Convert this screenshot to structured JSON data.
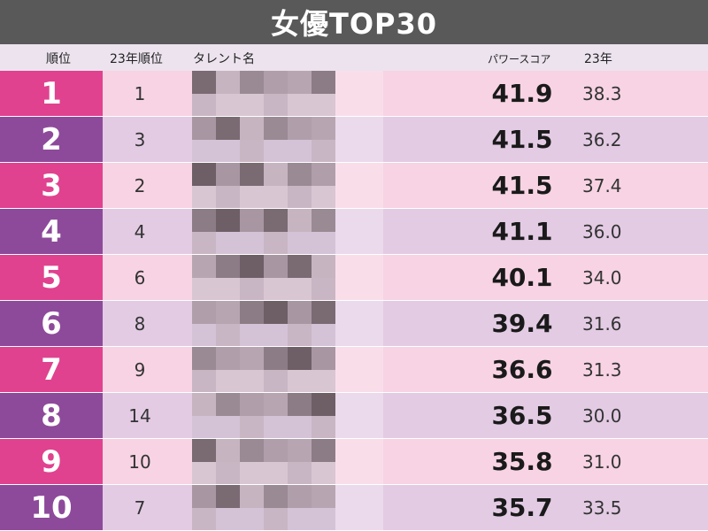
{
  "title": "女優TOP30",
  "headers": {
    "rank": "順位",
    "prev_rank": "23年順位",
    "talent": "タレント名",
    "power_score": "パワースコア",
    "year": "23年"
  },
  "colors": {
    "title_bg": "#595959",
    "header_bg": "#ece3ef",
    "rank_pink": "#e0428f",
    "rank_purple": "#8e4a9a",
    "row_pink": "#f7d3e3",
    "row_purple": "#e3cbe4"
  },
  "rows": [
    {
      "rank": "1",
      "prev_rank": "1",
      "score": "41.9",
      "year": "38.3"
    },
    {
      "rank": "2",
      "prev_rank": "3",
      "score": "41.5",
      "year": "36.2"
    },
    {
      "rank": "3",
      "prev_rank": "2",
      "score": "41.5",
      "year": "37.4"
    },
    {
      "rank": "4",
      "prev_rank": "4",
      "score": "41.1",
      "year": "36.0"
    },
    {
      "rank": "5",
      "prev_rank": "6",
      "score": "40.1",
      "year": "34.0"
    },
    {
      "rank": "6",
      "prev_rank": "8",
      "score": "39.4",
      "year": "31.6"
    },
    {
      "rank": "7",
      "prev_rank": "9",
      "score": "36.6",
      "year": "31.3"
    },
    {
      "rank": "8",
      "prev_rank": "14",
      "score": "36.5",
      "year": "30.0"
    },
    {
      "rank": "9",
      "prev_rank": "10",
      "score": "35.8",
      "year": "31.0"
    },
    {
      "rank": "10",
      "prev_rank": "7",
      "score": "35.7",
      "year": "33.5"
    }
  ]
}
